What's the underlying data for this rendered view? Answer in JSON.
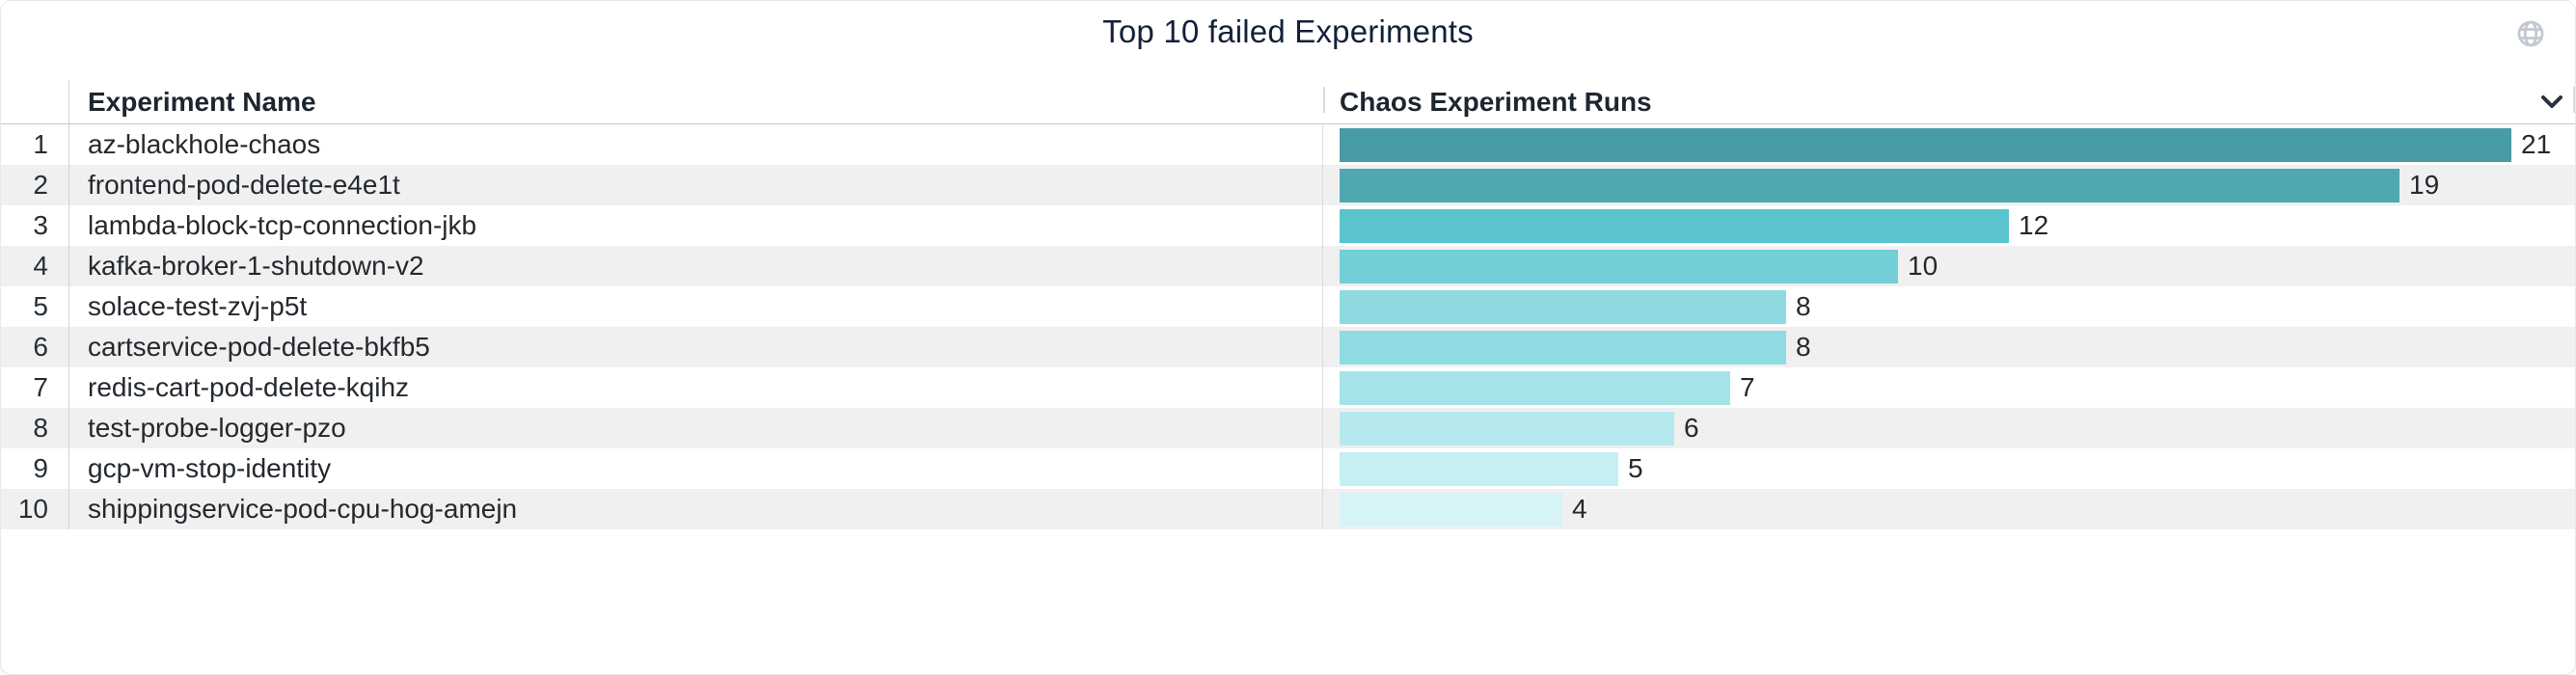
{
  "panel": {
    "title": "Top 10 failed Experiments"
  },
  "header": {
    "experiment_name": "Experiment Name",
    "runs": "Chaos Experiment Runs"
  },
  "icons": {
    "globe": "globe-icon",
    "sort": "chevron-down-icon"
  },
  "colors": {
    "title_text": "#132039",
    "header_text": "#1d2630",
    "body_text": "#24292e",
    "row_stripe": "#f0f0f1",
    "globe_icon": "#c3c8d0",
    "chevron_icon": "#27313f"
  },
  "rows": [
    {
      "index": "1",
      "name": "az-blackhole-chaos",
      "runs": 21,
      "bar_color": "#489ca6"
    },
    {
      "index": "2",
      "name": "frontend-pod-delete-e4e1t",
      "runs": 19,
      "bar_color": "#4fa8b1"
    },
    {
      "index": "3",
      "name": "lambda-block-tcp-connection-jkb",
      "runs": 12,
      "bar_color": "#5ac3cd"
    },
    {
      "index": "4",
      "name": "kafka-broker-1-shutdown-v2",
      "runs": 10,
      "bar_color": "#73ced7"
    },
    {
      "index": "5",
      "name": "solace-test-zvj-p5t",
      "runs": 8,
      "bar_color": "#8fdae0"
    },
    {
      "index": "6",
      "name": "cartservice-pod-delete-bkfb5",
      "runs": 8,
      "bar_color": "#90dbe1"
    },
    {
      "index": "7",
      "name": "redis-cart-pod-delete-kqihz",
      "runs": 7,
      "bar_color": "#a5e3e8"
    },
    {
      "index": "8",
      "name": "test-probe-logger-pzo",
      "runs": 6,
      "bar_color": "#b5e9ee"
    },
    {
      "index": "9",
      "name": "gcp-vm-stop-identity",
      "runs": 5,
      "bar_color": "#c5eff3"
    },
    {
      "index": "10",
      "name": "shippingservice-pod-cpu-hog-amejn",
      "runs": 4,
      "bar_color": "#d6f4f8"
    }
  ],
  "chart_data": {
    "type": "bar",
    "orientation": "horizontal",
    "title": "Top 10 failed Experiments",
    "categories": [
      "az-blackhole-chaos",
      "frontend-pod-delete-e4e1t",
      "lambda-block-tcp-connection-jkb",
      "kafka-broker-1-shutdown-v2",
      "solace-test-zvj-p5t",
      "cartservice-pod-delete-bkfb5",
      "redis-cart-pod-delete-kqihz",
      "test-probe-logger-pzo",
      "gcp-vm-stop-identity",
      "shippingservice-pod-cpu-hog-amejn"
    ],
    "values": [
      21,
      19,
      12,
      10,
      8,
      8,
      7,
      6,
      5,
      4
    ],
    "value_axis_label": "Chaos Experiment Runs",
    "category_axis_label": "Experiment Name",
    "xlim": [
      0,
      21
    ],
    "bar_colors": [
      "#489ca6",
      "#4fa8b1",
      "#5ac3cd",
      "#73ced7",
      "#8fdae0",
      "#90dbe1",
      "#a5e3e8",
      "#b5e9ee",
      "#c5eff3",
      "#d6f4f8"
    ],
    "data_labels": true,
    "grid": false,
    "legend": false
  }
}
